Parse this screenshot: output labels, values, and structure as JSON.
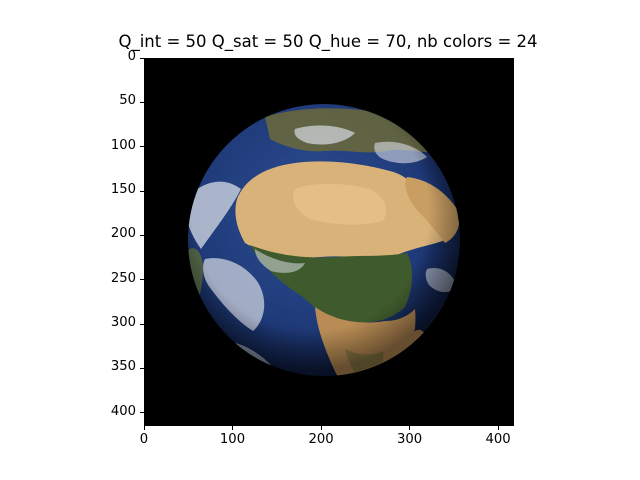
{
  "title": "Q_int = 50 Q_sat = 50 Q_hue = 70, nb colors = 24",
  "image": {
    "subject": "quantized satellite image of Earth centered on Africa",
    "background_color": "#000000",
    "ocean_color": "#1f3a78",
    "land_colors": [
      "#d9b27a",
      "#b98c55",
      "#3f5a2c",
      "#6b6a3a"
    ],
    "cloud_color": "#d8dde6"
  },
  "x_axis": {
    "ticks": [
      "0",
      "100",
      "200",
      "300",
      "400"
    ],
    "tick_values": [
      0,
      100,
      200,
      300,
      400
    ],
    "range": [
      0,
      418
    ]
  },
  "y_axis": {
    "ticks": [
      "0",
      "50",
      "100",
      "150",
      "200",
      "250",
      "300",
      "350",
      "400"
    ],
    "tick_values": [
      0,
      50,
      100,
      150,
      200,
      250,
      300,
      350,
      400
    ],
    "range": [
      0,
      415
    ],
    "inverted": true
  }
}
